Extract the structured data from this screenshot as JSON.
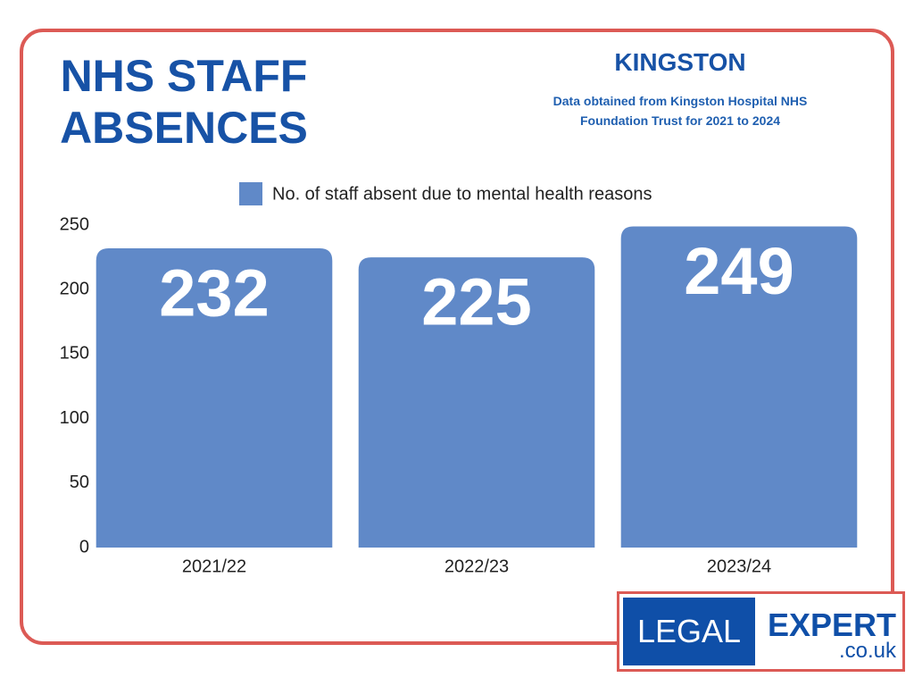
{
  "chart_data": {
    "type": "bar",
    "title": "NHS STAFF ABSENCES",
    "subtitle": "KINGSTON",
    "note": "Data obtained from Kingston Hospital NHS Foundation Trust for 2021 to 2024",
    "categories": [
      "2021/22",
      "2022/23",
      "2023/24"
    ],
    "series": [
      {
        "name": "No. of staff absent due to mental health reasons",
        "color": "#6089c8",
        "values": [
          232,
          225,
          249
        ]
      }
    ],
    "ylim": [
      0,
      250
    ],
    "yticks": [
      0,
      50,
      100,
      150,
      200,
      250
    ],
    "grid": false,
    "legend": "top"
  },
  "logo": {
    "left": "LEGAL",
    "right": "EXPERT",
    "domain": ".co.uk"
  }
}
